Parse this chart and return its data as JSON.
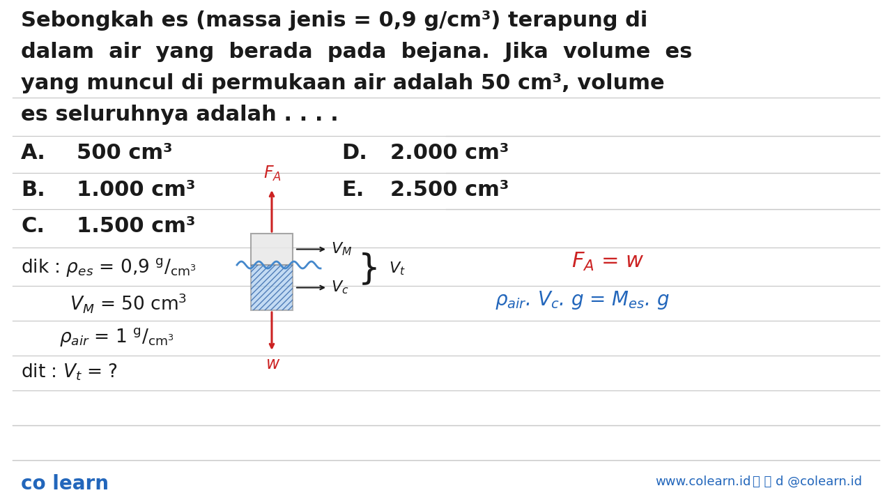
{
  "bg_color": "#ffffff",
  "text_color": "#1a1a1a",
  "blue_color": "#2266bb",
  "red_color": "#cc2222",
  "line_color": "#c8c8c8",
  "colearn_blue": "#2266bb",
  "figsize": [
    12.8,
    7.2
  ],
  "dpi": 100,
  "title_line1": "Sebongkah es (massa jenis = 0,9 g/cm³) terapung di",
  "title_line2": "dalam  air  yang  berada  pada  bejana.  Jika  volume  es",
  "title_line3": "yang muncul di permukaan air adalah 50 cm³, volume",
  "title_line4": "es seluruhnya adalah . . . .",
  "opt_A": "500 cm³",
  "opt_B": "1.000 cm³",
  "opt_C": "1.500 cm³",
  "opt_D": "2.000 cm³",
  "opt_E": "2.500 cm³",
  "footer_left": "co learn",
  "footer_url": "www.colearn.id",
  "footer_social": " d² @colearn.id"
}
